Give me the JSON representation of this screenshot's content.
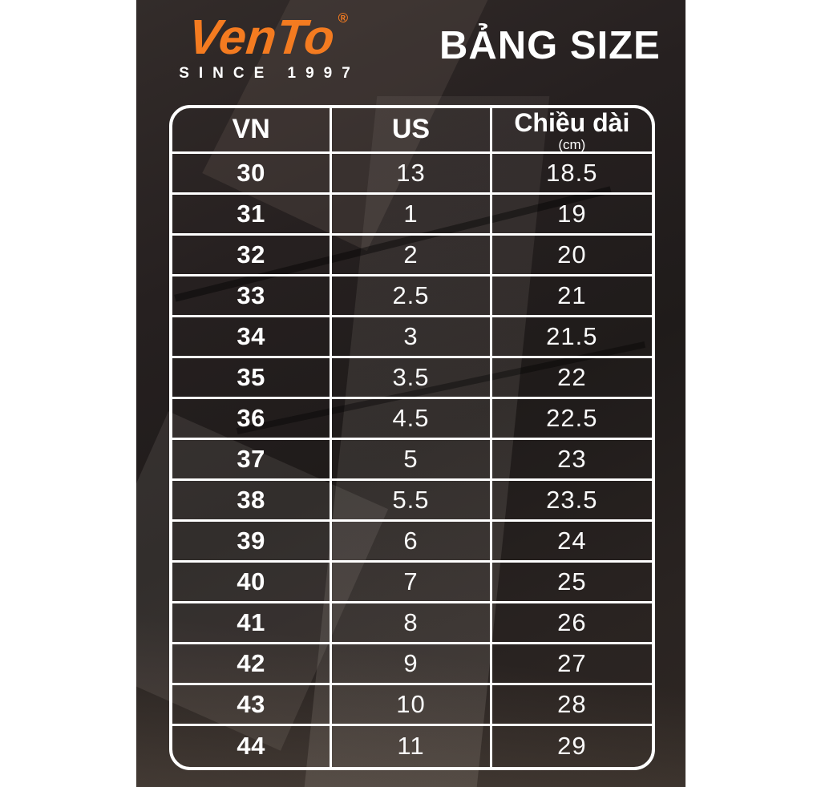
{
  "header": {
    "logo": {
      "brand": "VenTo",
      "registered": "®",
      "tagline": "SINCE 1997"
    },
    "title": "BẢNG SIZE"
  },
  "chart_data": {
    "type": "table",
    "title": "BẢNG SIZE",
    "columns": [
      {
        "label": "VN"
      },
      {
        "label": "US"
      },
      {
        "label": "Chiều dài",
        "unit": "(cm)"
      }
    ],
    "rows": [
      [
        "30",
        "13",
        "18.5"
      ],
      [
        "31",
        "1",
        "19"
      ],
      [
        "32",
        "2",
        "20"
      ],
      [
        "33",
        "2.5",
        "21"
      ],
      [
        "34",
        "3",
        "21.5"
      ],
      [
        "35",
        "3.5",
        "22"
      ],
      [
        "36",
        "4.5",
        "22.5"
      ],
      [
        "37",
        "5",
        "23"
      ],
      [
        "38",
        "5.5",
        "23.5"
      ],
      [
        "39",
        "6",
        "24"
      ],
      [
        "40",
        "7",
        "25"
      ],
      [
        "41",
        "8",
        "26"
      ],
      [
        "42",
        "9",
        "27"
      ],
      [
        "43",
        "10",
        "28"
      ],
      [
        "44",
        "11",
        "29"
      ]
    ]
  },
  "colors": {
    "brand_orange": "#F47B20",
    "panel_background": "#241F1E",
    "table_border": "#FFFFFF",
    "text": "#FFFFFF"
  }
}
